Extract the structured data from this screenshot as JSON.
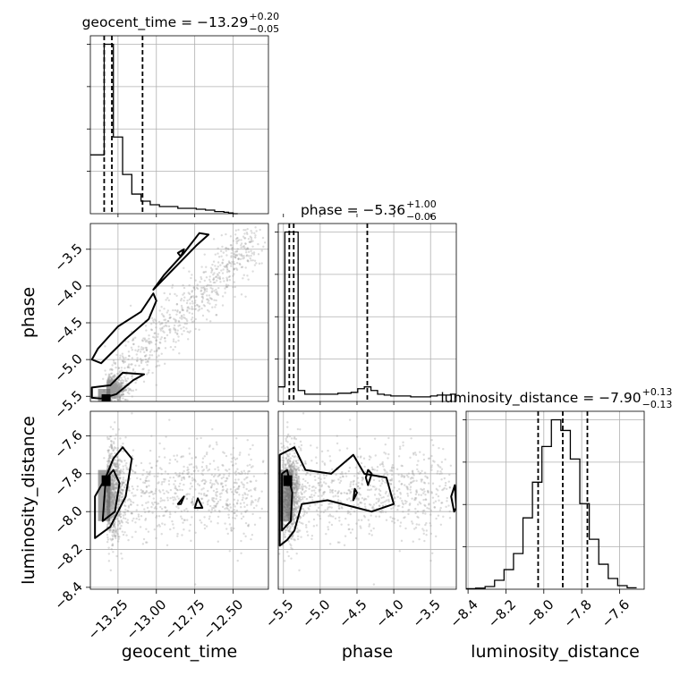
{
  "chart_data": {
    "type": "corner",
    "parameters": [
      "geocent_time",
      "phase",
      "luminosity_distance"
    ],
    "grid": true,
    "ranges": {
      "geocent_time": [
        -13.43,
        -12.27
      ],
      "phase": [
        -5.57,
        -3.15
      ],
      "luminosity_distance": [
        -8.41,
        -7.47
      ]
    },
    "ticks": {
      "geocent_time": [
        "−13.25",
        "−13.00",
        "−12.75",
        "−12.50"
      ],
      "phase": [
        "−5.5",
        "−5.0",
        "−4.5",
        "−4.0",
        "−3.5"
      ],
      "luminosity_distance": [
        "−8.4",
        "−8.2",
        "−8.0",
        "−7.8",
        "−7.6"
      ]
    },
    "tick_values": {
      "geocent_time": [
        -13.25,
        -13.0,
        -12.75,
        -12.5
      ],
      "phase": [
        -5.5,
        -5.0,
        -4.5,
        -4.0,
        -3.5
      ],
      "luminosity_distance": [
        -8.4,
        -8.2,
        -8.0,
        -7.8,
        -7.6
      ]
    },
    "titles": {
      "geocent_time": {
        "main": "geocent_time = −13.29",
        "plus": "+0.20",
        "minus": "−0.05"
      },
      "phase": {
        "main": "phase = −5.36",
        "plus": "+1.00",
        "minus": "−0.06"
      },
      "luminosity_distance": {
        "main": "luminosity_distance = −7.90",
        "plus": "+0.13",
        "minus": "−0.13"
      }
    },
    "quantiles": {
      "geocent_time": [
        -13.34,
        -13.29,
        -13.09
      ],
      "phase": [
        -5.42,
        -5.36,
        -4.36
      ],
      "luminosity_distance": [
        -8.03,
        -7.9,
        -7.77
      ]
    },
    "histograms": {
      "geocent_time": {
        "edges": [
          -13.43,
          -13.4,
          -13.37,
          -13.34,
          -13.31,
          -13.28,
          -13.25,
          -13.22,
          -13.19,
          -13.16,
          -13.13,
          -13.1,
          -13.07,
          -13.04,
          -13.01,
          -12.98,
          -12.95,
          -12.92,
          -12.89,
          -12.86,
          -12.83,
          -12.8,
          -12.77,
          -12.74,
          -12.71,
          -12.68,
          -12.65,
          -12.62,
          -12.59,
          -12.56,
          -12.53,
          -12.5,
          -12.47
        ],
        "counts": [
          0.33,
          0.33,
          0.33,
          0.95,
          0.95,
          0.43,
          0.43,
          0.22,
          0.22,
          0.11,
          0.11,
          0.07,
          0.07,
          0.05,
          0.05,
          0.04,
          0.04,
          0.04,
          0.04,
          0.03,
          0.03,
          0.03,
          0.03,
          0.025,
          0.025,
          0.02,
          0.02,
          0.012,
          0.012,
          0.008,
          0.004,
          0.0
        ]
      },
      "phase": {
        "edges": [
          -5.57,
          -5.48,
          -5.39,
          -5.3,
          -5.21,
          -5.12,
          -5.03,
          -4.94,
          -4.85,
          -4.76,
          -4.67,
          -4.58,
          -4.49,
          -4.4,
          -4.31,
          -4.22,
          -4.13,
          -4.04,
          -3.95,
          -3.86,
          -3.77,
          -3.68,
          -3.59,
          -3.5,
          -3.41,
          -3.32,
          -3.23,
          -3.15
        ],
        "counts": [
          0.08,
          0.93,
          0.93,
          0.06,
          0.04,
          0.04,
          0.04,
          0.04,
          0.04,
          0.045,
          0.045,
          0.05,
          0.07,
          0.08,
          0.06,
          0.04,
          0.035,
          0.03,
          0.03,
          0.03,
          0.025,
          0.025,
          0.025,
          0.03,
          0.035,
          0.035,
          0.04
        ]
      },
      "luminosity_distance": {
        "edges": [
          -8.41,
          -8.36,
          -8.31,
          -8.26,
          -8.21,
          -8.16,
          -8.11,
          -8.06,
          -8.01,
          -7.96,
          -7.91,
          -7.86,
          -7.81,
          -7.76,
          -7.71,
          -7.66,
          -7.61,
          -7.56,
          -7.51
        ],
        "counts": [
          0.003,
          0.006,
          0.015,
          0.05,
          0.11,
          0.2,
          0.4,
          0.6,
          0.8,
          0.95,
          0.89,
          0.73,
          0.48,
          0.28,
          0.14,
          0.06,
          0.02,
          0.008
        ]
      }
    }
  }
}
